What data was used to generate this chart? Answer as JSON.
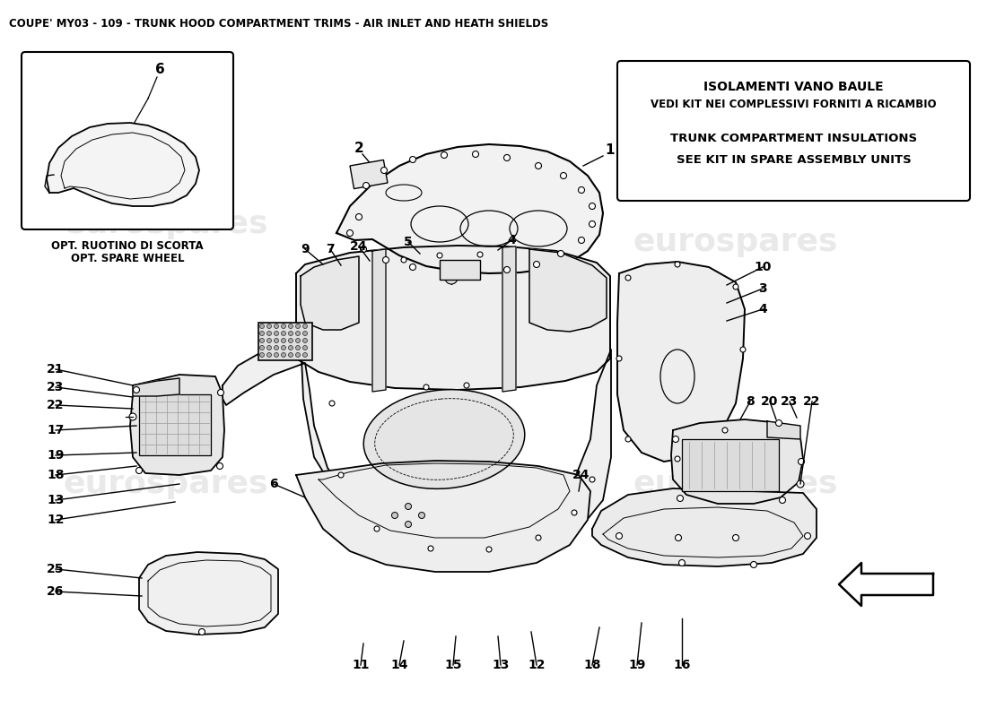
{
  "title": "COUPE' MY03 - 109 - TRUNK HOOD COMPARTMENT TRIMS - AIR INLET AND HEATH SHIELDS",
  "bg_color": "#ffffff",
  "watermark_text": "eurospares",
  "info_box": {
    "line1": "ISOLAMENTI VANO BAULE",
    "line2": "VEDI KIT NEI COMPLESSIVI FORNITI A RICAMBIO",
    "line3": "TRUNK COMPARTMENT INSULATIONS",
    "line4": "SEE KIT IN SPARE ASSEMBLY UNITS"
  },
  "inset_caption_line1": "OPT. RUOTINO DI SCORTA",
  "inset_caption_line2": "OPT. SPARE WHEEL"
}
